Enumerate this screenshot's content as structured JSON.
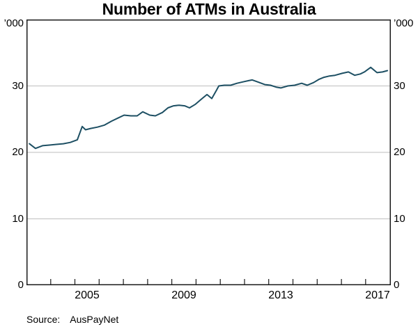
{
  "page": {
    "title": "Number of ATMs in Australia",
    "source_label": "Source:",
    "source_value": "AusPayNet"
  },
  "colors": {
    "series_line": "#1d4f63",
    "gridline": "#c9c9c9",
    "frame": "#1a1a1a"
  },
  "chart_data": {
    "type": "line",
    "title": "Number of ATMs in Australia",
    "unit_label": "’000",
    "source": "AusPayNet",
    "grid": "horizontal-only",
    "legend": "none",
    "x_axis": {
      "min": 2003.0,
      "max": 2018.04,
      "tick_years": [
        2004,
        2005,
        2006,
        2007,
        2008,
        2009,
        2010,
        2011,
        2012,
        2013,
        2014,
        2015,
        2016,
        2017
      ],
      "labels": [
        {
          "text": "2005",
          "center": 2005.5
        },
        {
          "text": "2009",
          "center": 2009.5
        },
        {
          "text": "2013",
          "center": 2013.5
        },
        {
          "text": "2017",
          "center": 2017.5
        }
      ]
    },
    "y_axis": {
      "min": 0,
      "max": 40,
      "tick_labels": [
        30,
        20,
        10,
        0
      ],
      "gridlines": [
        10,
        20,
        30
      ],
      "unit": "thousands of ATMs"
    },
    "series": [
      {
        "name": "Number of ATMs",
        "color": "#1d4f63",
        "points": [
          [
            2003.12,
            21.3
          ],
          [
            2003.37,
            20.6
          ],
          [
            2003.66,
            21.0
          ],
          [
            2003.95,
            21.1
          ],
          [
            2004.24,
            21.2
          ],
          [
            2004.52,
            21.3
          ],
          [
            2004.81,
            21.5
          ],
          [
            2005.1,
            21.9
          ],
          [
            2005.3,
            23.9
          ],
          [
            2005.44,
            23.4
          ],
          [
            2005.65,
            23.6
          ],
          [
            2005.93,
            23.8
          ],
          [
            2006.22,
            24.1
          ],
          [
            2006.51,
            24.7
          ],
          [
            2006.8,
            25.2
          ],
          [
            2007.03,
            25.6
          ],
          [
            2007.31,
            25.5
          ],
          [
            2007.57,
            25.5
          ],
          [
            2007.8,
            26.1
          ],
          [
            2008.09,
            25.6
          ],
          [
            2008.32,
            25.5
          ],
          [
            2008.61,
            26.0
          ],
          [
            2008.84,
            26.7
          ],
          [
            2009.07,
            27.0
          ],
          [
            2009.3,
            27.1
          ],
          [
            2009.53,
            27.0
          ],
          [
            2009.73,
            26.7
          ],
          [
            2009.96,
            27.2
          ],
          [
            2010.25,
            28.1
          ],
          [
            2010.45,
            28.7
          ],
          [
            2010.65,
            28.1
          ],
          [
            2010.85,
            29.4
          ],
          [
            2010.94,
            30.0
          ],
          [
            2011.17,
            30.1
          ],
          [
            2011.43,
            30.1
          ],
          [
            2011.69,
            30.4
          ],
          [
            2011.92,
            30.6
          ],
          [
            2012.17,
            30.8
          ],
          [
            2012.32,
            30.9
          ],
          [
            2012.55,
            30.6
          ],
          [
            2012.84,
            30.2
          ],
          [
            2013.07,
            30.1
          ],
          [
            2013.33,
            29.8
          ],
          [
            2013.5,
            29.7
          ],
          [
            2013.79,
            30.0
          ],
          [
            2014.07,
            30.1
          ],
          [
            2014.36,
            30.4
          ],
          [
            2014.59,
            30.1
          ],
          [
            2014.85,
            30.5
          ],
          [
            2015.08,
            31.0
          ],
          [
            2015.28,
            31.3
          ],
          [
            2015.51,
            31.5
          ],
          [
            2015.74,
            31.6
          ],
          [
            2016.03,
            31.9
          ],
          [
            2016.29,
            32.1
          ],
          [
            2016.55,
            31.6
          ],
          [
            2016.78,
            31.8
          ],
          [
            2016.95,
            32.1
          ],
          [
            2017.21,
            32.8
          ],
          [
            2017.47,
            32.0
          ],
          [
            2017.7,
            32.1
          ],
          [
            2017.9,
            32.3
          ]
        ]
      }
    ]
  }
}
